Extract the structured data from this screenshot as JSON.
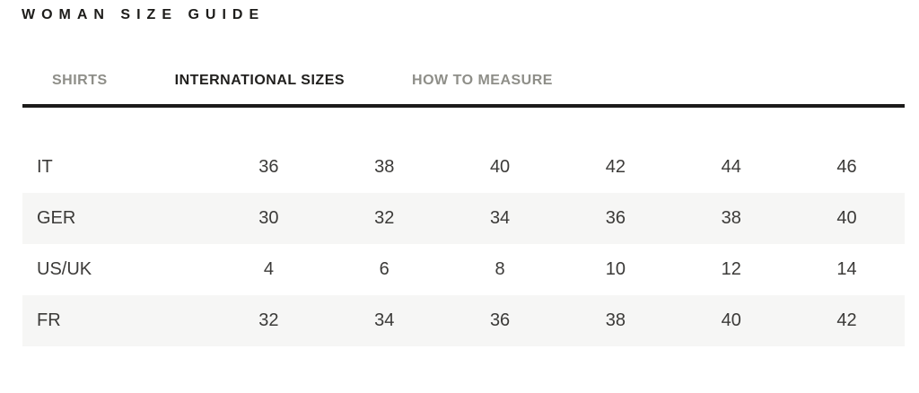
{
  "page": {
    "title": "WOMAN SIZE GUIDE"
  },
  "tabs": {
    "items": [
      {
        "label": "SHIRTS",
        "active": false
      },
      {
        "label": "INTERNATIONAL SIZES",
        "active": true
      },
      {
        "label": "HOW TO MEASURE",
        "active": false
      }
    ]
  },
  "size_table": {
    "rows": [
      {
        "label": "IT",
        "values": [
          "36",
          "38",
          "40",
          "42",
          "44",
          "46"
        ]
      },
      {
        "label": "GER",
        "values": [
          "30",
          "32",
          "34",
          "36",
          "38",
          "40"
        ]
      },
      {
        "label": "US/UK",
        "values": [
          "4",
          "6",
          "8",
          "10",
          "12",
          "14"
        ]
      },
      {
        "label": "FR",
        "values": [
          "32",
          "34",
          "36",
          "38",
          "40",
          "42"
        ]
      }
    ]
  },
  "colors": {
    "text_dark": "#1d1c1a",
    "tab_active": "#201f1d",
    "tab_inactive": "#8e8e88",
    "underline": "#1c1b1a",
    "table_text": "#3b3a38",
    "row_alt_bg": "#f6f6f5"
  }
}
